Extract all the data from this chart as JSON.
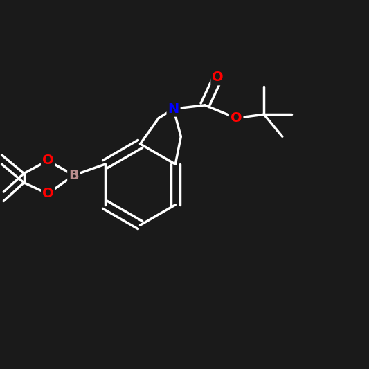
{
  "background_color": "#1a1a1a",
  "bond_color": "#ffffff",
  "atom_colors": {
    "N": "#0000ff",
    "O": "#ff0000",
    "B": "#bc8f8f",
    "C": "#ffffff"
  },
  "bond_width": 2.5,
  "font_size": 14,
  "figsize": [
    5.33,
    5.33
  ],
  "dpi": 100
}
